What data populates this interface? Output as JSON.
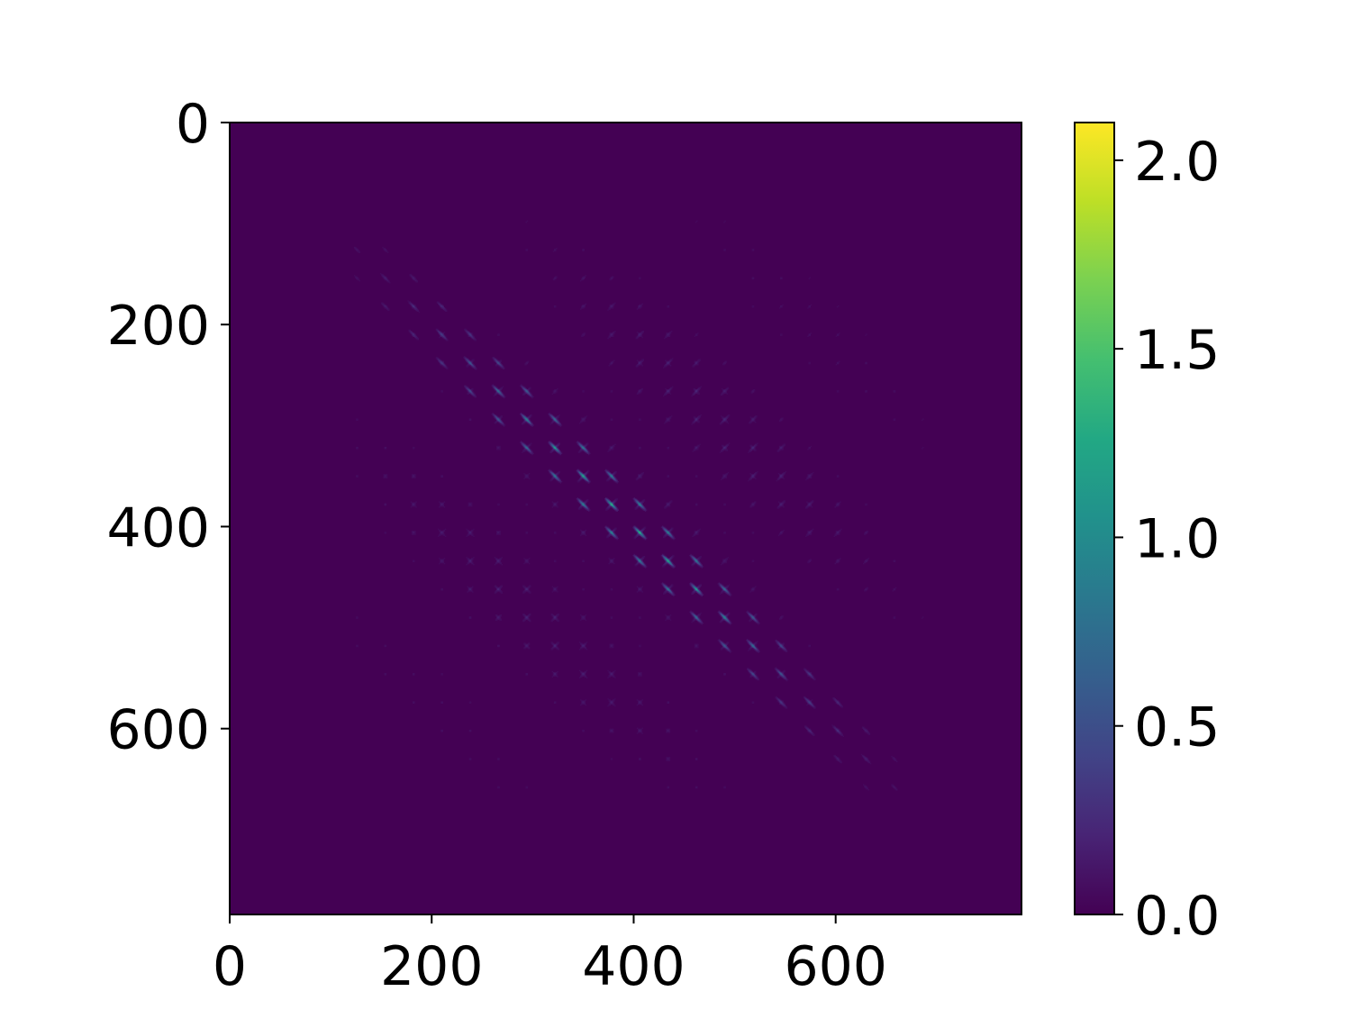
{
  "chart_data": {
    "type": "heatmap",
    "title": "",
    "xlabel": "",
    "ylabel": "",
    "grid": false,
    "x_range": [
      0,
      784
    ],
    "y_range": [
      784,
      0
    ],
    "x_ticks": [
      0,
      200,
      400,
      600
    ],
    "x_tick_labels": [
      "0",
      "200",
      "400",
      "600"
    ],
    "y_ticks": [
      0,
      200,
      400,
      600
    ],
    "y_tick_labels": [
      "0",
      "200",
      "400",
      "600"
    ],
    "block_size": 28,
    "blocks_per_side": 28,
    "colorbar": {
      "colormap": "viridis",
      "range": [
        0.0,
        2.1
      ],
      "ticks": [
        0.0,
        0.5,
        1.0,
        1.5,
        2.0
      ],
      "tick_labels": [
        "0.0",
        "0.5",
        "1.0",
        "1.5",
        "2.0"
      ],
      "position": "right"
    },
    "colors": {
      "background": "#440154",
      "axis": "#000000"
    }
  }
}
